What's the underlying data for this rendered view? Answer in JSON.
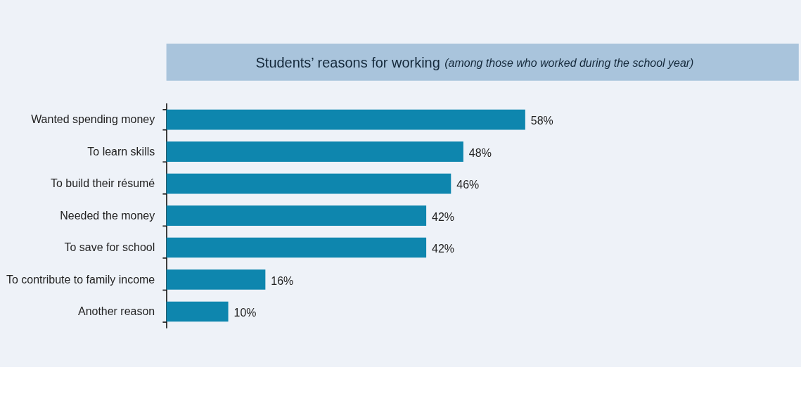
{
  "chart_data": {
    "type": "bar",
    "orientation": "horizontal",
    "title": "Students’ reasons for working",
    "subtitle": "(among those who worked during the school year)",
    "categories": [
      "Wanted spending money",
      "To learn skills",
      "To build their résumé",
      "Needed the money",
      "To save for school",
      "To contribute to family income",
      "Another reason"
    ],
    "values": [
      58,
      48,
      46,
      42,
      42,
      16,
      10
    ],
    "value_labels": [
      "58%",
      "48%",
      "46%",
      "42%",
      "42%",
      "16%",
      "10%"
    ],
    "color": "#0e86ae"
  }
}
